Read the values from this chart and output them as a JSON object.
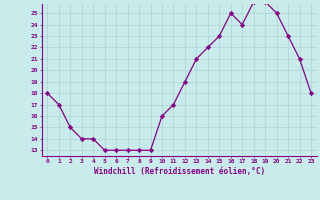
{
  "x": [
    0,
    1,
    2,
    3,
    4,
    5,
    6,
    7,
    8,
    9,
    10,
    11,
    12,
    13,
    14,
    15,
    16,
    17,
    18,
    19,
    20,
    21,
    22,
    23
  ],
  "y": [
    18,
    17,
    15,
    14,
    14,
    13,
    13,
    13,
    13,
    13,
    16,
    17,
    19,
    21,
    22,
    23,
    25,
    24,
    26,
    26,
    25,
    23,
    21,
    18
  ],
  "line_color": "#880088",
  "marker_color": "#880088",
  "bg_color": "#c8ecec",
  "grid_color": "#aad4d4",
  "xlabel": "Windchill (Refroidissement éolien,°C)",
  "xlim": [
    -0.5,
    23.5
  ],
  "ylim": [
    12.5,
    25.8
  ],
  "yticks": [
    13,
    14,
    15,
    16,
    17,
    18,
    19,
    20,
    21,
    22,
    23,
    24,
    25
  ],
  "xticks": [
    0,
    1,
    2,
    3,
    4,
    5,
    6,
    7,
    8,
    9,
    10,
    11,
    12,
    13,
    14,
    15,
    16,
    17,
    18,
    19,
    20,
    21,
    22,
    23
  ],
  "xtick_labels": [
    "0",
    "1",
    "2",
    "3",
    "4",
    "5",
    "6",
    "7",
    "8",
    "9",
    "10",
    "11",
    "12",
    "13",
    "14",
    "15",
    "16",
    "17",
    "18",
    "19",
    "20",
    "21",
    "22",
    "23"
  ]
}
